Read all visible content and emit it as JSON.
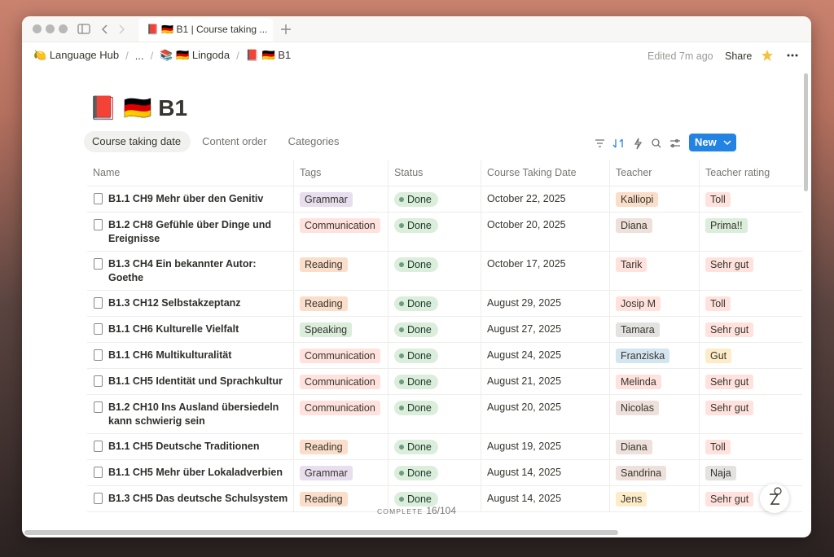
{
  "tab": {
    "title": "📕 🇩🇪 B1 | Course taking ..."
  },
  "breadcrumb": [
    {
      "icon": "🍋",
      "label": "Language Hub"
    },
    {
      "icon": "",
      "label": "..."
    },
    {
      "icon": "📚 🇩🇪",
      "label": "Lingoda"
    },
    {
      "icon": "📕 🇩🇪",
      "label": "B1"
    }
  ],
  "topbar": {
    "edited": "Edited 7m ago",
    "share": "Share"
  },
  "page": {
    "icon": "📕 🇩🇪",
    "title": "B1"
  },
  "views": [
    "Course taking date",
    "Content order",
    "Categories"
  ],
  "new_button": "New",
  "columns": [
    "Name",
    "Tags",
    "Status",
    "Course Taking Date",
    "Teacher",
    "Teacher rating"
  ],
  "rows": [
    {
      "name": "B1.1 CH9 Mehr über den Genitiv",
      "tag": "Grammar",
      "tag_color": "purple",
      "status": "Done",
      "date": "October 22, 2025",
      "teacher": "Kalliopi",
      "teacher_color": "orange",
      "rating": "Toll",
      "rating_color": "red"
    },
    {
      "name": "B1.2 CH8 Gefühle über Dinge und Ereignisse",
      "tag": "Communication",
      "tag_color": "red",
      "status": "Done",
      "date": "October 20, 2025",
      "teacher": "Diana",
      "teacher_color": "brown",
      "rating": "Prima!!",
      "rating_color": "green"
    },
    {
      "name": "B1.3 CH4 Ein bekannter Autor: Goethe",
      "tag": "Reading",
      "tag_color": "orange",
      "status": "Done",
      "date": "October 17, 2025",
      "teacher": "Tarik",
      "teacher_color": "red",
      "rating": "Sehr gut",
      "rating_color": "red"
    },
    {
      "name": "B1.3 CH12 Selbstakzeptanz",
      "tag": "Reading",
      "tag_color": "orange",
      "status": "Done",
      "date": "August 29, 2025",
      "teacher": "Josip M",
      "teacher_color": "red",
      "rating": "Toll",
      "rating_color": "red"
    },
    {
      "name": "B1.1 CH6 Kulturelle Vielfalt",
      "tag": "Speaking",
      "tag_color": "green",
      "status": "Done",
      "date": "August 27, 2025",
      "teacher": "Tamara",
      "teacher_color": "gray",
      "rating": "Sehr gut",
      "rating_color": "red"
    },
    {
      "name": "B1.1 CH6 Multikulturalität",
      "tag": "Communication",
      "tag_color": "red",
      "status": "Done",
      "date": "August 24, 2025",
      "teacher": "Franziska",
      "teacher_color": "blue",
      "rating": "Gut",
      "rating_color": "yellow"
    },
    {
      "name": "B1.1 CH5 Identität und Sprachkultur",
      "tag": "Communication",
      "tag_color": "red",
      "status": "Done",
      "date": "August 21, 2025",
      "teacher": "Melinda",
      "teacher_color": "red",
      "rating": "Sehr gut",
      "rating_color": "red"
    },
    {
      "name": "B1.2 CH10 Ins Ausland übersiedeln kann schwierig sein",
      "tag": "Communication",
      "tag_color": "red",
      "status": "Done",
      "date": "August 20, 2025",
      "teacher": "Nicolas",
      "teacher_color": "brown",
      "rating": "Sehr gut",
      "rating_color": "red"
    },
    {
      "name": "B1.1 CH5 Deutsche Traditionen",
      "tag": "Reading",
      "tag_color": "orange",
      "status": "Done",
      "date": "August 19, 2025",
      "teacher": "Diana",
      "teacher_color": "brown",
      "rating": "Toll",
      "rating_color": "red"
    },
    {
      "name": "B1.1 CH5 Mehr über Lokaladverbien",
      "tag": "Grammar",
      "tag_color": "purple",
      "status": "Done",
      "date": "August 14, 2025",
      "teacher": "Sandrina",
      "teacher_color": "brown",
      "rating": "Naja",
      "rating_color": "gray"
    },
    {
      "name": "B1.3 CH5 Das deutsche Schulsystem",
      "tag": "Reading",
      "tag_color": "orange",
      "status": "Done",
      "date": "August 14, 2025",
      "teacher": "Jens",
      "teacher_color": "yellow",
      "rating": "Sehr gut",
      "rating_color": "red"
    }
  ],
  "footer": {
    "label": "COMPLETE",
    "count": "16/104"
  }
}
